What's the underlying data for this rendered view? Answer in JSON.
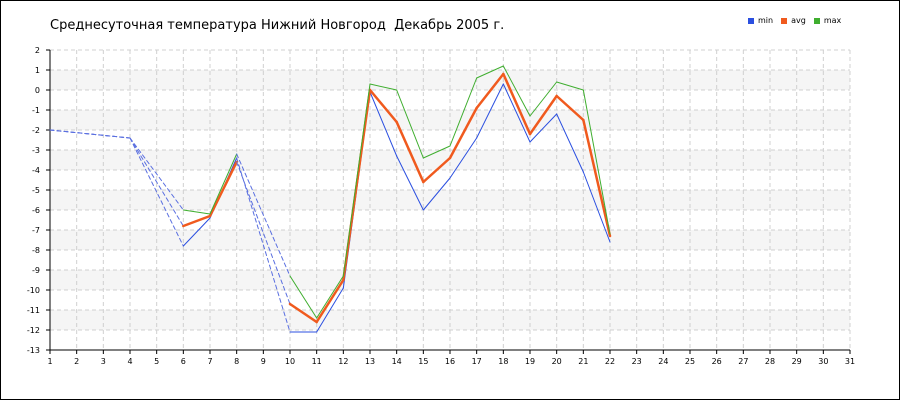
{
  "chart_data": {
    "type": "line",
    "title": "Среднесуточная температура Нижний Новгород  Декабрь 2005 г.",
    "xlabel": "",
    "ylabel": "",
    "xlim": [
      1,
      31
    ],
    "ylim": [
      -13,
      2
    ],
    "x_ticks": [
      1,
      2,
      3,
      4,
      5,
      6,
      7,
      8,
      9,
      10,
      11,
      12,
      13,
      14,
      15,
      16,
      17,
      18,
      19,
      20,
      21,
      22,
      23,
      24,
      25,
      26,
      27,
      28,
      29,
      30,
      31
    ],
    "y_ticks": [
      2,
      1,
      0,
      -1,
      -2,
      -3,
      -4,
      -5,
      -6,
      -7,
      -8,
      -9,
      -10,
      -11,
      -12,
      -13
    ],
    "grid": true,
    "legend_position": "top-right",
    "series": [
      {
        "name": "min",
        "color": "#2b4fe0",
        "points": [
          [
            1,
            -2.0
          ],
          [
            4,
            -2.4
          ],
          [
            6,
            -7.8
          ],
          [
            7,
            -6.4
          ],
          [
            8,
            -3.4
          ],
          [
            10,
            -12.1
          ],
          [
            11,
            -12.1
          ],
          [
            12,
            -9.9
          ],
          [
            13,
            -0.1
          ],
          [
            14,
            -3.3
          ],
          [
            15,
            -6.0
          ],
          [
            16,
            -4.4
          ],
          [
            17,
            -2.4
          ],
          [
            18,
            0.3
          ],
          [
            19,
            -2.6
          ],
          [
            20,
            -1.2
          ],
          [
            21,
            -4.1
          ],
          [
            22,
            -7.6
          ]
        ],
        "gaps": [
          [
            1,
            4
          ],
          [
            4,
            6
          ],
          [
            8,
            10
          ]
        ]
      },
      {
        "name": "avg",
        "color": "#f05a1e",
        "points": [
          [
            1,
            -2.0
          ],
          [
            4,
            -2.4
          ],
          [
            6,
            -6.8
          ],
          [
            7,
            -6.3
          ],
          [
            8,
            -3.6
          ],
          [
            10,
            -10.7
          ],
          [
            11,
            -11.6
          ],
          [
            12,
            -9.5
          ],
          [
            13,
            0.0
          ],
          [
            14,
            -1.6
          ],
          [
            15,
            -4.6
          ],
          [
            16,
            -3.4
          ],
          [
            17,
            -0.9
          ],
          [
            18,
            0.8
          ],
          [
            19,
            -2.2
          ],
          [
            20,
            -0.3
          ],
          [
            21,
            -1.5
          ],
          [
            22,
            -7.3
          ]
        ],
        "gaps": [
          [
            1,
            4
          ],
          [
            4,
            6
          ],
          [
            8,
            10
          ]
        ]
      },
      {
        "name": "max",
        "color": "#3fae2f",
        "points": [
          [
            1,
            -2.0
          ],
          [
            4,
            -2.4
          ],
          [
            6,
            -6.0
          ],
          [
            7,
            -6.2
          ],
          [
            8,
            -3.2
          ],
          [
            10,
            -9.3
          ],
          [
            11,
            -11.4
          ],
          [
            12,
            -9.3
          ],
          [
            13,
            0.3
          ],
          [
            14,
            0.0
          ],
          [
            15,
            -3.4
          ],
          [
            16,
            -2.8
          ],
          [
            17,
            0.6
          ],
          [
            18,
            1.2
          ],
          [
            19,
            -1.3
          ],
          [
            20,
            0.4
          ],
          [
            21,
            0.0
          ],
          [
            22,
            -7.2
          ]
        ],
        "gaps": [
          [
            1,
            4
          ],
          [
            4,
            6
          ],
          [
            8,
            10
          ]
        ]
      }
    ]
  }
}
